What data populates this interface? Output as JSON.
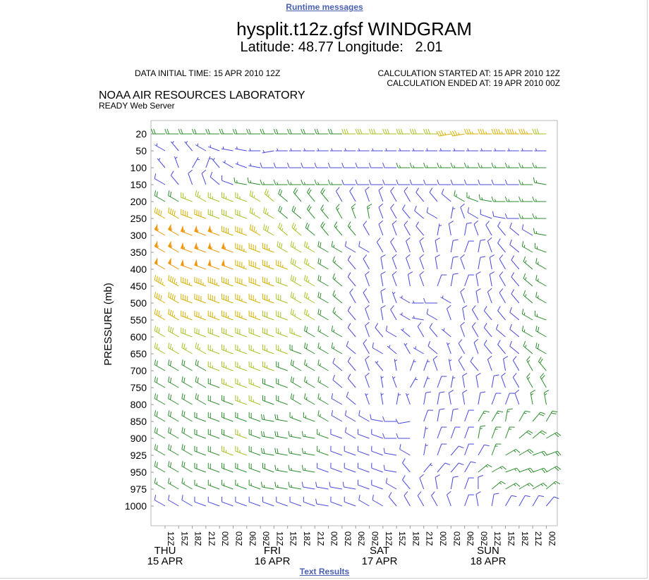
{
  "links": {
    "runtime": "Runtime messages",
    "text_results": "Text Results"
  },
  "header": {
    "title": "hysplit.t12z.gfsf WINDGRAM",
    "subtitle": "Latitude: 48.77 Longitude:   2.01",
    "data_initial": "DATA INITIAL TIME: 15 APR 2010 12Z",
    "calc_started": "CALCULATION STARTED AT: 15 APR 2010 12Z",
    "calc_ended": "CALCULATION ENDED AT: 19 APR 2010 00Z",
    "org": "NOAA AIR RESOURCES LABORATORY",
    "server": "READY Web Server"
  },
  "colors": {
    "calm": "#8c8c8c",
    "light": "#4848d8",
    "moderate": "#2e8b2e",
    "fresh": "#a8c020",
    "strong": "#d4b000",
    "gale": "#f0960a"
  },
  "chart_data": {
    "type": "windgram",
    "ylabel": "PRESSURE (mb)",
    "pressure_levels": [
      20,
      50,
      100,
      150,
      200,
      250,
      300,
      350,
      400,
      450,
      500,
      550,
      600,
      650,
      700,
      750,
      800,
      850,
      900,
      925,
      950,
      975,
      1000
    ],
    "time_ticks": [
      "12Z",
      "15Z",
      "18Z",
      "21Z",
      "00Z",
      "03Z",
      "06Z",
      "09Z",
      "12Z",
      "15Z",
      "18Z",
      "21Z",
      "00Z",
      "03Z",
      "06Z",
      "09Z",
      "12Z",
      "15Z",
      "18Z",
      "21Z",
      "00Z",
      "03Z",
      "06Z",
      "09Z",
      "12Z",
      "15Z",
      "18Z",
      "21Z",
      "00Z"
    ],
    "days": [
      {
        "name": "THU",
        "date": "15 APR"
      },
      {
        "name": "FRI",
        "date": "16 APR"
      },
      {
        "name": "SAT",
        "date": "17 APR"
      },
      {
        "name": "SUN",
        "date": "18 APR"
      }
    ],
    "columns": 29,
    "speed_units": "knots",
    "wind_direction_deg": [
      [
        270,
        270,
        270,
        270,
        270,
        270,
        270,
        270,
        270,
        270,
        270,
        270,
        270,
        270,
        270,
        270,
        270,
        270,
        270,
        270,
        270,
        260,
        260,
        270,
        270,
        270,
        270,
        270,
        270
      ],
      [
        300,
        320,
        320,
        300,
        290,
        280,
        280,
        270,
        260,
        270,
        270,
        270,
        270,
        270,
        270,
        270,
        270,
        270,
        270,
        270,
        270,
        270,
        270,
        270,
        270,
        270,
        270,
        270,
        270
      ],
      [
        320,
        340,
        30,
        20,
        320,
        300,
        290,
        280,
        270,
        270,
        270,
        270,
        270,
        270,
        270,
        270,
        270,
        270,
        270,
        270,
        270,
        270,
        270,
        270,
        270,
        270,
        270,
        270,
        270
      ],
      [
        300,
        320,
        340,
        340,
        310,
        290,
        280,
        280,
        270,
        270,
        270,
        270,
        270,
        270,
        270,
        270,
        270,
        270,
        270,
        270,
        270,
        270,
        270,
        270,
        270,
        270,
        270,
        270,
        280
      ],
      [
        300,
        300,
        290,
        300,
        290,
        290,
        290,
        300,
        310,
        310,
        320,
        320,
        320,
        330,
        330,
        340,
        340,
        330,
        330,
        320,
        320,
        310,
        300,
        290,
        280,
        270,
        270,
        270,
        270
      ],
      [
        300,
        300,
        290,
        290,
        290,
        290,
        290,
        300,
        300,
        310,
        310,
        320,
        320,
        330,
        340,
        350,
        340,
        330,
        320,
        310,
        300,
        10,
        340,
        300,
        290,
        280,
        270,
        270,
        270
      ],
      [
        300,
        300,
        290,
        290,
        290,
        290,
        290,
        300,
        300,
        310,
        310,
        310,
        320,
        320,
        320,
        330,
        340,
        340,
        330,
        320,
        10,
        350,
        10,
        340,
        330,
        320,
        310,
        300,
        280
      ],
      [
        300,
        300,
        290,
        290,
        290,
        290,
        290,
        290,
        290,
        300,
        300,
        300,
        300,
        300,
        300,
        300,
        330,
        330,
        340,
        340,
        350,
        10,
        20,
        10,
        340,
        320,
        310,
        300,
        290
      ],
      [
        300,
        300,
        290,
        290,
        290,
        290,
        290,
        290,
        290,
        290,
        300,
        300,
        300,
        310,
        320,
        330,
        350,
        340,
        340,
        340,
        350,
        10,
        340,
        10,
        350,
        330,
        320,
        310,
        300
      ],
      [
        300,
        300,
        290,
        290,
        290,
        290,
        290,
        290,
        290,
        290,
        300,
        300,
        300,
        310,
        320,
        340,
        350,
        340,
        350,
        340,
        20,
        10,
        20,
        350,
        350,
        330,
        320,
        310,
        300
      ],
      [
        300,
        300,
        290,
        290,
        290,
        290,
        290,
        290,
        290,
        290,
        300,
        300,
        300,
        310,
        330,
        330,
        350,
        340,
        300,
        270,
        270,
        300,
        340,
        350,
        340,
        330,
        320,
        310,
        300
      ],
      [
        300,
        300,
        290,
        290,
        290,
        290,
        290,
        290,
        290,
        290,
        300,
        300,
        300,
        310,
        320,
        340,
        350,
        330,
        300,
        280,
        300,
        340,
        350,
        330,
        320,
        320,
        310,
        300,
        290
      ],
      [
        300,
        300,
        290,
        290,
        290,
        290,
        290,
        290,
        290,
        290,
        290,
        300,
        300,
        300,
        320,
        340,
        320,
        300,
        310,
        330,
        320,
        310,
        340,
        330,
        320,
        310,
        310,
        300,
        300
      ],
      [
        300,
        300,
        300,
        300,
        290,
        290,
        290,
        290,
        290,
        290,
        290,
        300,
        300,
        300,
        310,
        330,
        300,
        310,
        330,
        300,
        310,
        340,
        330,
        340,
        320,
        320,
        310,
        310,
        300
      ],
      [
        300,
        300,
        300,
        300,
        290,
        290,
        290,
        290,
        290,
        290,
        300,
        300,
        300,
        310,
        320,
        340,
        320,
        350,
        20,
        20,
        340,
        350,
        330,
        320,
        340,
        350,
        330,
        330,
        320
      ],
      [
        300,
        300,
        300,
        300,
        290,
        290,
        290,
        290,
        290,
        290,
        300,
        300,
        300,
        310,
        320,
        340,
        350,
        340,
        30,
        20,
        20,
        10,
        350,
        350,
        10,
        340,
        330,
        330,
        330
      ],
      [
        300,
        300,
        300,
        300,
        290,
        290,
        290,
        290,
        290,
        290,
        300,
        300,
        300,
        300,
        310,
        340,
        350,
        10,
        340,
        10,
        10,
        350,
        350,
        10,
        20,
        20,
        340,
        350,
        350
      ],
      [
        300,
        300,
        300,
        290,
        290,
        290,
        290,
        290,
        280,
        280,
        290,
        290,
        300,
        300,
        300,
        300,
        280,
        270,
        260,
        20,
        10,
        10,
        20,
        30,
        30,
        10,
        30,
        40,
        30
      ],
      [
        300,
        300,
        300,
        290,
        290,
        290,
        290,
        290,
        280,
        280,
        280,
        280,
        290,
        290,
        300,
        290,
        290,
        270,
        270,
        10,
        20,
        20,
        20,
        10,
        20,
        20,
        50,
        50,
        60
      ],
      [
        300,
        300,
        300,
        290,
        290,
        290,
        290,
        290,
        280,
        280,
        280,
        280,
        290,
        290,
        290,
        290,
        290,
        280,
        300,
        10,
        20,
        40,
        20,
        30,
        20,
        60,
        60,
        70,
        70
      ],
      [
        300,
        300,
        300,
        290,
        290,
        290,
        290,
        290,
        290,
        280,
        280,
        280,
        290,
        290,
        290,
        290,
        290,
        280,
        320,
        40,
        40,
        40,
        30,
        50,
        60,
        70,
        70,
        70,
        60
      ],
      [
        300,
        300,
        300,
        290,
        290,
        290,
        290,
        290,
        280,
        280,
        280,
        280,
        280,
        280,
        280,
        290,
        290,
        300,
        320,
        340,
        350,
        10,
        20,
        360,
        50,
        60,
        60,
        60,
        50
      ],
      [
        300,
        300,
        300,
        290,
        290,
        290,
        290,
        290,
        290,
        290,
        290,
        290,
        280,
        290,
        290,
        300,
        300,
        320,
        330,
        330,
        330,
        340,
        20,
        350,
        10,
        30,
        30,
        30,
        40
      ]
    ],
    "wind_speed_kt": [
      [
        20,
        20,
        20,
        20,
        20,
        20,
        20,
        20,
        20,
        20,
        20,
        20,
        20,
        20,
        30,
        30,
        30,
        30,
        30,
        30,
        30,
        35,
        35,
        35,
        35,
        45,
        45,
        35,
        30
      ],
      [
        5,
        5,
        5,
        5,
        5,
        5,
        5,
        5,
        5,
        5,
        5,
        5,
        5,
        5,
        5,
        5,
        5,
        5,
        5,
        5,
        5,
        5,
        5,
        5,
        5,
        5,
        5,
        5,
        5
      ],
      [
        5,
        5,
        5,
        5,
        5,
        5,
        5,
        5,
        10,
        10,
        10,
        10,
        10,
        10,
        10,
        10,
        10,
        10,
        15,
        15,
        15,
        15,
        15,
        15,
        15,
        15,
        15,
        15,
        15
      ],
      [
        10,
        10,
        10,
        10,
        10,
        10,
        15,
        15,
        15,
        15,
        15,
        15,
        15,
        15,
        10,
        10,
        10,
        10,
        10,
        10,
        10,
        10,
        10,
        10,
        10,
        10,
        10,
        15,
        15
      ],
      [
        20,
        20,
        25,
        25,
        25,
        25,
        25,
        25,
        25,
        20,
        20,
        20,
        20,
        10,
        10,
        10,
        10,
        10,
        10,
        10,
        10,
        10,
        15,
        15,
        15,
        15,
        15,
        15,
        15
      ],
      [
        40,
        40,
        40,
        40,
        30,
        30,
        30,
        25,
        25,
        20,
        20,
        20,
        15,
        15,
        15,
        15,
        10,
        10,
        10,
        10,
        10,
        5,
        10,
        10,
        10,
        10,
        10,
        15,
        15
      ],
      [
        55,
        55,
        55,
        55,
        55,
        40,
        40,
        35,
        30,
        25,
        25,
        20,
        20,
        15,
        15,
        10,
        10,
        10,
        10,
        10,
        5,
        10,
        10,
        10,
        10,
        10,
        10,
        10,
        15
      ],
      [
        55,
        55,
        55,
        55,
        55,
        55,
        45,
        40,
        35,
        30,
        25,
        25,
        20,
        15,
        10,
        10,
        10,
        10,
        10,
        10,
        10,
        10,
        10,
        10,
        10,
        10,
        10,
        15,
        15
      ],
      [
        50,
        50,
        50,
        50,
        50,
        50,
        45,
        40,
        35,
        35,
        30,
        25,
        20,
        15,
        10,
        10,
        10,
        10,
        10,
        10,
        10,
        10,
        10,
        10,
        10,
        10,
        10,
        15,
        15
      ],
      [
        45,
        45,
        45,
        45,
        45,
        40,
        40,
        40,
        35,
        30,
        30,
        25,
        20,
        15,
        10,
        10,
        10,
        10,
        10,
        10,
        10,
        10,
        10,
        10,
        10,
        10,
        10,
        15,
        15
      ],
      [
        40,
        40,
        40,
        40,
        40,
        40,
        35,
        35,
        35,
        30,
        25,
        25,
        20,
        15,
        10,
        10,
        10,
        5,
        5,
        5,
        10,
        5,
        10,
        10,
        10,
        10,
        10,
        15,
        15
      ],
      [
        35,
        35,
        35,
        35,
        35,
        35,
        35,
        35,
        30,
        30,
        25,
        25,
        20,
        15,
        10,
        10,
        10,
        10,
        5,
        5,
        10,
        10,
        10,
        10,
        10,
        10,
        10,
        15,
        15
      ],
      [
        30,
        30,
        30,
        30,
        30,
        30,
        30,
        30,
        30,
        25,
        25,
        20,
        15,
        15,
        10,
        10,
        10,
        10,
        5,
        10,
        10,
        5,
        10,
        10,
        10,
        10,
        10,
        15,
        20
      ],
      [
        25,
        25,
        25,
        25,
        25,
        25,
        25,
        25,
        25,
        25,
        20,
        20,
        15,
        15,
        10,
        10,
        10,
        5,
        5,
        5,
        10,
        5,
        10,
        10,
        10,
        10,
        10,
        15,
        20
      ],
      [
        20,
        20,
        20,
        20,
        25,
        25,
        25,
        25,
        25,
        20,
        20,
        15,
        15,
        10,
        10,
        10,
        5,
        5,
        5,
        5,
        10,
        5,
        10,
        10,
        10,
        10,
        10,
        15,
        20
      ],
      [
        20,
        20,
        20,
        20,
        20,
        25,
        25,
        25,
        20,
        20,
        20,
        15,
        15,
        10,
        10,
        10,
        5,
        5,
        5,
        5,
        10,
        5,
        10,
        10,
        10,
        10,
        10,
        15,
        20
      ],
      [
        20,
        20,
        20,
        20,
        20,
        20,
        25,
        25,
        20,
        20,
        20,
        15,
        15,
        10,
        10,
        5,
        5,
        5,
        5,
        10,
        10,
        10,
        10,
        10,
        10,
        10,
        10,
        15,
        15
      ],
      [
        20,
        20,
        20,
        20,
        20,
        20,
        20,
        20,
        20,
        20,
        15,
        15,
        15,
        10,
        10,
        10,
        10,
        10,
        10,
        10,
        10,
        10,
        10,
        15,
        15,
        15,
        15,
        20,
        20
      ],
      [
        20,
        20,
        20,
        20,
        20,
        20,
        25,
        20,
        20,
        20,
        15,
        15,
        15,
        10,
        10,
        10,
        10,
        10,
        10,
        5,
        10,
        10,
        10,
        15,
        15,
        15,
        20,
        20,
        20
      ],
      [
        20,
        20,
        20,
        20,
        20,
        25,
        25,
        20,
        20,
        20,
        15,
        15,
        15,
        10,
        10,
        10,
        10,
        10,
        10,
        5,
        10,
        10,
        10,
        10,
        15,
        15,
        20,
        20,
        20
      ],
      [
        20,
        20,
        20,
        20,
        20,
        20,
        20,
        20,
        20,
        15,
        15,
        15,
        10,
        10,
        10,
        10,
        10,
        10,
        10,
        5,
        10,
        10,
        10,
        15,
        15,
        15,
        20,
        20,
        20
      ],
      [
        15,
        15,
        15,
        15,
        15,
        15,
        15,
        15,
        15,
        15,
        15,
        10,
        10,
        10,
        10,
        10,
        10,
        10,
        10,
        10,
        10,
        10,
        10,
        10,
        15,
        15,
        15,
        15,
        15
      ],
      [
        10,
        10,
        10,
        10,
        10,
        10,
        10,
        10,
        10,
        10,
        10,
        10,
        10,
        10,
        10,
        10,
        10,
        10,
        10,
        10,
        10,
        10,
        10,
        10,
        10,
        10,
        10,
        10,
        10
      ]
    ]
  }
}
